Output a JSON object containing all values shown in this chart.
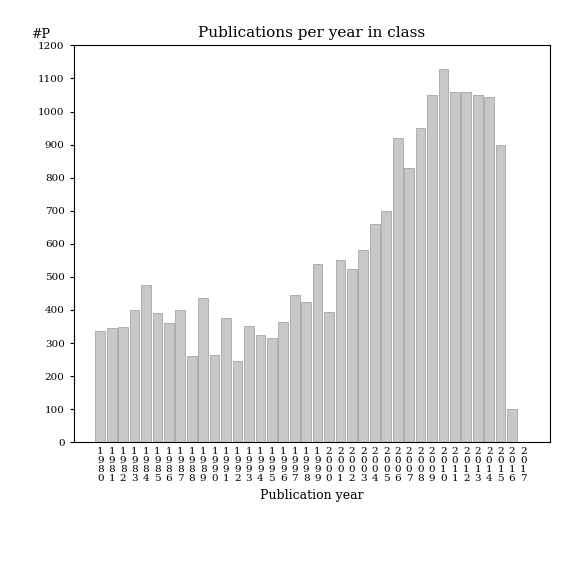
{
  "title": "Publications per year in class",
  "xlabel": "Publication year",
  "ylabel": "#P",
  "years": [
    "1980",
    "1981",
    "1982",
    "1983",
    "1984",
    "1985",
    "1986",
    "1987",
    "1988",
    "1989",
    "1990",
    "1991",
    "1992",
    "1993",
    "1994",
    "1995",
    "1996",
    "1997",
    "1998",
    "1999",
    "2000",
    "2001",
    "2002",
    "2003",
    "2004",
    "2005",
    "2006",
    "2007",
    "2008",
    "2009",
    "2010",
    "2011",
    "2012",
    "2013",
    "2014",
    "2015",
    "2016",
    "2017"
  ],
  "values": [
    335,
    345,
    348,
    400,
    475,
    390,
    360,
    400,
    260,
    435,
    265,
    375,
    245,
    350,
    325,
    315,
    365,
    445,
    425,
    540,
    395,
    550,
    525,
    580,
    660,
    700,
    920,
    830,
    950,
    1050,
    1130,
    1060,
    1060,
    1050,
    1045,
    900,
    100,
    0
  ],
  "bar_color": "#c8c8c8",
  "bar_edge_color": "#999999",
  "ylim": [
    0,
    1200
  ],
  "yticks": [
    0,
    100,
    200,
    300,
    400,
    500,
    600,
    700,
    800,
    900,
    1000,
    1100,
    1200
  ],
  "title_fontsize": 11,
  "label_fontsize": 9,
  "tick_fontsize": 7.5,
  "bg_color": "#ffffff",
  "fig_color": "#ffffff"
}
